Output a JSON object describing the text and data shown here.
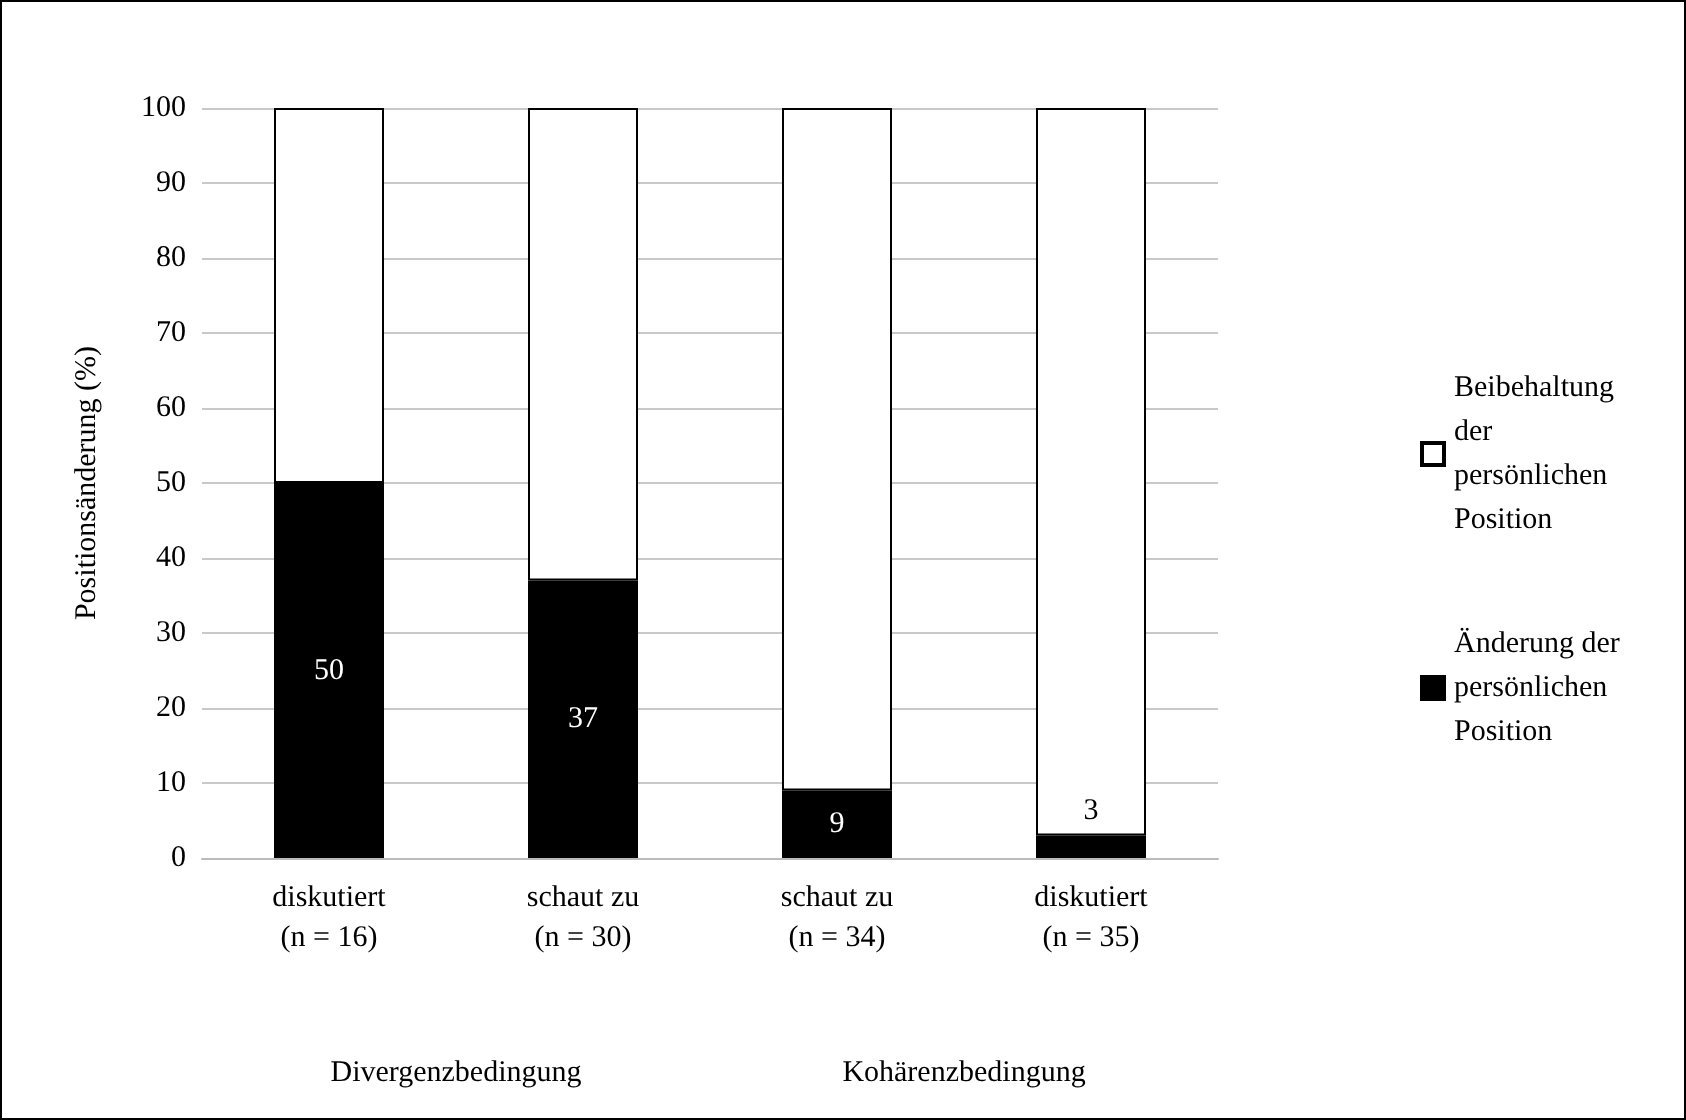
{
  "chart_data": {
    "type": "bar",
    "stacked": true,
    "ylabel": "Positionsänderung (%)",
    "categories": [
      "diskutiert\n(n = 16)",
      "schaut zu\n(n = 30)",
      "schaut zu\n(n = 34)",
      "diskutiert\n(n = 35)"
    ],
    "series": [
      {
        "name": "Änderung der persönlichen Position",
        "color": "#000000",
        "values": [
          50,
          37,
          9,
          3
        ],
        "value_labels": [
          "50",
          "37",
          "9",
          "3"
        ]
      },
      {
        "name": "Beibehaltung der persönlichen Position",
        "color": "#ffffff",
        "values": [
          50,
          63,
          91,
          97
        ]
      }
    ],
    "ylim": [
      0,
      100
    ],
    "yticks": [
      0,
      10,
      20,
      30,
      40,
      50,
      60,
      70,
      80,
      90,
      100
    ],
    "grid": "y",
    "legend": "right",
    "annotations": [
      "Divergenzbedingung",
      "Kohärenzbedingung"
    ]
  }
}
